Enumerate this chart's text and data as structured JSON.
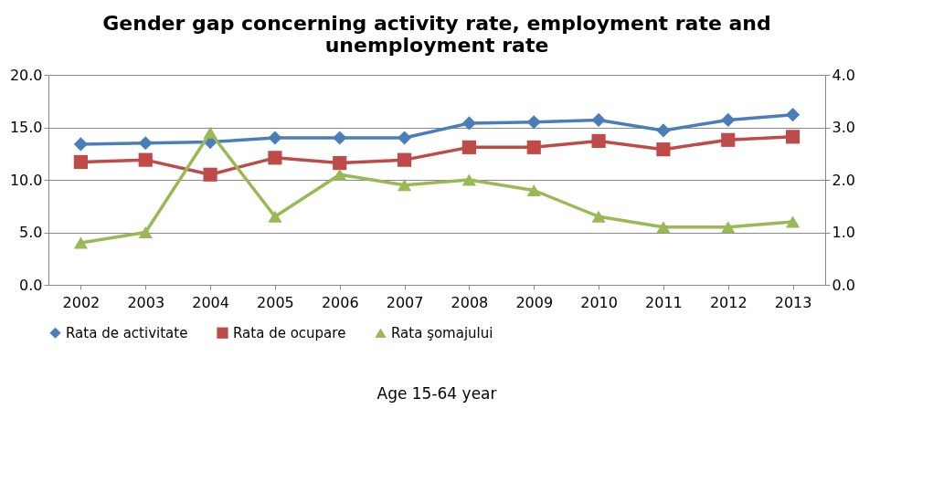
{
  "chart_data": {
    "type": "line",
    "title": [
      "Gender gap concerning  activity rate, employment rate and",
      "unemployment rate"
    ],
    "categories": [
      "2002",
      "2003",
      "2004",
      "2005",
      "2006",
      "2007",
      "2008",
      "2009",
      "2010",
      "2011",
      "2012",
      "2013"
    ],
    "series": [
      {
        "name": "Rata de activitate",
        "color": "#4a7ebb",
        "marker": "diamond",
        "values": [
          13.4,
          13.5,
          13.6,
          14.0,
          14.0,
          14.0,
          15.4,
          15.5,
          15.7,
          14.7,
          15.7,
          16.2
        ]
      },
      {
        "name": "Rata de ocupare",
        "color": "#be4b48",
        "marker": "square",
        "values": [
          11.7,
          11.9,
          10.5,
          12.1,
          11.6,
          11.9,
          13.1,
          13.1,
          13.7,
          12.9,
          13.8,
          14.1
        ]
      },
      {
        "name": "Rata şomajului",
        "color": "#98b954",
        "marker": "triangle",
        "axis": "y2",
        "values": [
          0.8,
          1.0,
          2.9,
          1.3,
          2.1,
          1.9,
          2.0,
          1.8,
          1.3,
          1.1,
          1.1,
          1.2
        ]
      }
    ],
    "ylim": [
      0,
      20
    ],
    "yticks": [
      {
        "value": 0,
        "label": "0.0"
      },
      {
        "value": 5,
        "label": "5.0"
      },
      {
        "value": 10,
        "label": "10.0"
      },
      {
        "value": 15,
        "label": "15.0"
      },
      {
        "value": 20,
        "label": "20.0"
      }
    ],
    "y2lim": [
      0,
      4
    ],
    "y2ticks": [
      {
        "value": 0,
        "label": "0.0"
      },
      {
        "value": 1,
        "label": "1.0"
      },
      {
        "value": 2,
        "label": "2.0"
      },
      {
        "value": 3,
        "label": "3.0"
      },
      {
        "value": 4,
        "label": "4.0"
      }
    ],
    "grid": "y",
    "legend": "bottom",
    "line_style": "solid",
    "annotations": [
      "Age 15-64 year"
    ]
  }
}
